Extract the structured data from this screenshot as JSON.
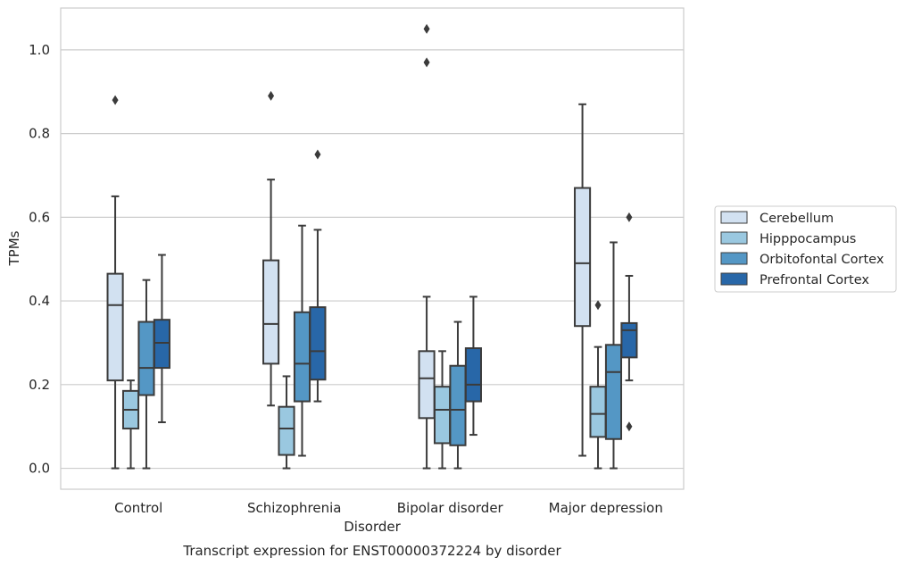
{
  "chart_data": {
    "type": "box",
    "title": "",
    "caption": "Transcript expression for ENST00000372224 by disorder",
    "xlabel": "Disorder",
    "ylabel": "TPMs",
    "ylim": [
      -0.05,
      1.1
    ],
    "yticks": [
      0.0,
      0.2,
      0.4,
      0.6,
      0.8,
      1.0
    ],
    "ytick_labels": [
      "0.0",
      "0.2",
      "0.4",
      "0.6",
      "0.8",
      "1.0"
    ],
    "grid": "horizontal",
    "legend_position": "right",
    "categories": [
      "Control",
      "Schizophrenia",
      "Bipolar disorder",
      "Major depression"
    ],
    "series": [
      {
        "name": "Cerebellum",
        "color": "#d2e1f1",
        "boxes": [
          {
            "whisker_low": 0.0,
            "q1": 0.21,
            "median": 0.39,
            "q3": 0.465,
            "whisker_high": 0.65,
            "outliers": [
              0.88
            ]
          },
          {
            "whisker_low": 0.15,
            "q1": 0.25,
            "median": 0.345,
            "q3": 0.497,
            "whisker_high": 0.69,
            "outliers": [
              0.89
            ]
          },
          {
            "whisker_low": 0.0,
            "q1": 0.12,
            "median": 0.215,
            "q3": 0.28,
            "whisker_high": 0.41,
            "outliers": [
              0.97,
              1.05
            ]
          },
          {
            "whisker_low": 0.03,
            "q1": 0.34,
            "median": 0.49,
            "q3": 0.67,
            "whisker_high": 0.87,
            "outliers": []
          }
        ]
      },
      {
        "name": "Hipppocampus",
        "color": "#9ac8e0",
        "boxes": [
          {
            "whisker_low": 0.0,
            "q1": 0.095,
            "median": 0.14,
            "q3": 0.185,
            "whisker_high": 0.21,
            "outliers": []
          },
          {
            "whisker_low": 0.0,
            "q1": 0.032,
            "median": 0.095,
            "q3": 0.147,
            "whisker_high": 0.22,
            "outliers": []
          },
          {
            "whisker_low": 0.0,
            "q1": 0.06,
            "median": 0.14,
            "q3": 0.195,
            "whisker_high": 0.28,
            "outliers": []
          },
          {
            "whisker_low": 0.0,
            "q1": 0.075,
            "median": 0.13,
            "q3": 0.195,
            "whisker_high": 0.29,
            "outliers": [
              0.39
            ]
          }
        ]
      },
      {
        "name": "Orbitofontal Cortex",
        "color": "#5497c5",
        "boxes": [
          {
            "whisker_low": 0.0,
            "q1": 0.175,
            "median": 0.24,
            "q3": 0.35,
            "whisker_high": 0.45,
            "outliers": []
          },
          {
            "whisker_low": 0.03,
            "q1": 0.16,
            "median": 0.25,
            "q3": 0.373,
            "whisker_high": 0.58,
            "outliers": []
          },
          {
            "whisker_low": 0.0,
            "q1": 0.055,
            "median": 0.14,
            "q3": 0.245,
            "whisker_high": 0.35,
            "outliers": []
          },
          {
            "whisker_low": 0.0,
            "q1": 0.07,
            "median": 0.23,
            "q3": 0.295,
            "whisker_high": 0.54,
            "outliers": []
          }
        ]
      },
      {
        "name": "Prefrontal Cortex",
        "color": "#2867a8",
        "boxes": [
          {
            "whisker_low": 0.11,
            "q1": 0.24,
            "median": 0.3,
            "q3": 0.355,
            "whisker_high": 0.51,
            "outliers": []
          },
          {
            "whisker_low": 0.16,
            "q1": 0.212,
            "median": 0.28,
            "q3": 0.385,
            "whisker_high": 0.57,
            "outliers": [
              0.75
            ]
          },
          {
            "whisker_low": 0.08,
            "q1": 0.16,
            "median": 0.2,
            "q3": 0.287,
            "whisker_high": 0.41,
            "outliers": []
          },
          {
            "whisker_low": 0.21,
            "q1": 0.265,
            "median": 0.33,
            "q3": 0.347,
            "whisker_high": 0.46,
            "outliers": [
              0.1,
              0.6
            ]
          }
        ]
      }
    ]
  }
}
